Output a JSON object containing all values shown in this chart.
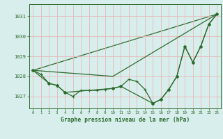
{
  "title": "Graphe pression niveau de la mer (hPa)",
  "background_color": "#d8eeed",
  "grid_color": "#e8b8b8",
  "line_color": "#2d6b2d",
  "xlim": [
    -0.5,
    23.5
  ],
  "ylim": [
    1026.4,
    1031.6
  ],
  "yticks": [
    1027,
    1028,
    1029,
    1030,
    1031
  ],
  "xticks": [
    0,
    1,
    2,
    3,
    4,
    5,
    6,
    7,
    8,
    9,
    10,
    11,
    12,
    13,
    14,
    15,
    16,
    17,
    18,
    19,
    20,
    21,
    22,
    23
  ],
  "series_detail": {
    "x": [
      0,
      1,
      2,
      3,
      4,
      5,
      6,
      7,
      8,
      9,
      10,
      11,
      12,
      13,
      14,
      15,
      16,
      17,
      18,
      19,
      20,
      21,
      22,
      23
    ],
    "y": [
      1028.3,
      1028.1,
      1027.65,
      1027.55,
      1027.2,
      1027.0,
      1027.3,
      1027.3,
      1027.3,
      1027.35,
      1027.4,
      1027.5,
      1027.85,
      1027.75,
      1027.35,
      1026.65,
      1026.85,
      1027.35,
      1028.0,
      1029.5,
      1028.7,
      1029.5,
      1030.6,
      1031.1
    ]
  },
  "series_smooth": {
    "x": [
      0,
      2,
      3,
      4,
      10,
      11,
      15,
      16,
      17,
      18,
      19,
      20,
      21,
      22,
      23
    ],
    "y": [
      1028.3,
      1027.65,
      1027.55,
      1027.2,
      1027.4,
      1027.5,
      1026.65,
      1026.85,
      1027.35,
      1028.0,
      1029.5,
      1028.7,
      1029.5,
      1030.6,
      1031.1
    ]
  },
  "series_linear1": {
    "x": [
      0,
      23
    ],
    "y": [
      1028.3,
      1031.1
    ]
  },
  "series_linear2": {
    "x": [
      0,
      10,
      23
    ],
    "y": [
      1028.3,
      1028.0,
      1031.1
    ]
  }
}
